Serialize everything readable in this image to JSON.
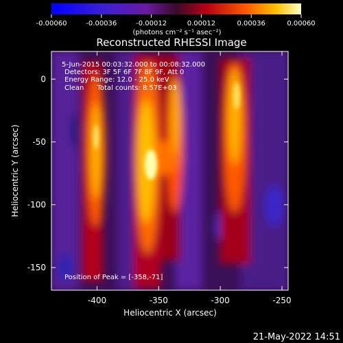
{
  "chart_data": {
    "type": "heatmap",
    "title": "Reconstructed RHESSI Image",
    "xlabel": "Heliocentric X (arcsec)",
    "ylabel": "Heliocentric Y (arcsec)",
    "xlim": [
      -437,
      -245
    ],
    "ylim": [
      -168,
      22
    ],
    "x_ticks": [
      -400,
      -350,
      -300,
      -250
    ],
    "y_ticks": [
      0,
      -50,
      -100,
      -150
    ],
    "x_tick_labels": [
      "-400",
      "-350",
      "-300",
      "-250"
    ],
    "y_tick_labels": [
      "0",
      "-50",
      "-100",
      "-150"
    ],
    "colorbar": {
      "ticks": [
        -0.0006,
        -0.00036,
        -0.00012,
        0.00012,
        0.00036,
        0.0006
      ],
      "tick_labels": [
        "-0.00060",
        "-0.00036",
        "-0.00012",
        "0.00012",
        "0.00036",
        "0.00060"
      ],
      "range": [
        -0.0006,
        0.0006
      ],
      "unit_label": "(photons cm⁻² s⁻¹ asec⁻²)"
    },
    "peak_position": [
      -358,
      -71
    ],
    "annotations": {
      "time_range": "5-Jun-2015 00:03:32.000 to 00:08:32.000",
      "detectors": "Detectors: 3F 5F 6F 7F 8F 9F, Att 0",
      "energy_range": "Energy Range: 12.0 - 25.0 keV",
      "clean_counts": "Clean      Total counts: 8.57E+03",
      "peak": "Position of Peak = [-358,-71]"
    },
    "timestamp": "21-May-2022 14:51"
  }
}
